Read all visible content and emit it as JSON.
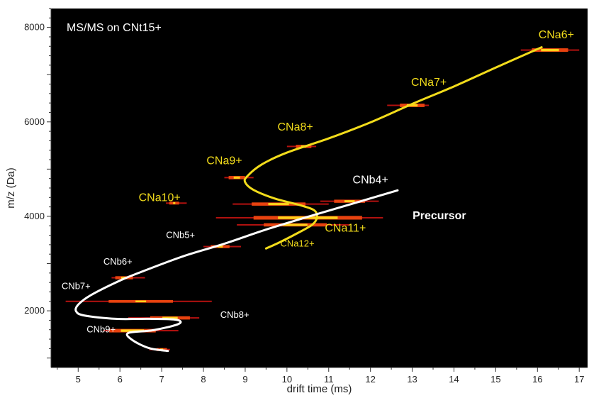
{
  "chart_data": {
    "type": "heatmap",
    "title": "MS/MS on CNt15+",
    "xlabel": "drift time (ms)",
    "ylabel": "m/z (Da)",
    "xlim": [
      4.35,
      17.2
    ],
    "ylim": [
      800,
      8400
    ],
    "x_ticks": [
      5,
      6,
      7,
      8,
      9,
      10,
      11,
      12,
      13,
      14,
      15,
      16,
      17
    ],
    "y_ticks": [
      2000,
      4000,
      6000,
      8000
    ],
    "grid": false,
    "background_color": "#000000",
    "a_series_color": "#f2dc1b",
    "b_series_color": "#ffffff",
    "spots": [
      {
        "x": 16.3,
        "y": 7520,
        "x_min": 15.6,
        "x_max": 17.0,
        "intensity": 0.9
      },
      {
        "x": 13.0,
        "y": 6350,
        "x_min": 12.4,
        "x_max": 13.4,
        "intensity": 0.8
      },
      {
        "x": 10.4,
        "y": 5480,
        "x_min": 10.0,
        "x_max": 10.7,
        "intensity": 0.6
      },
      {
        "x": 8.8,
        "y": 4820,
        "x_min": 8.5,
        "x_max": 9.2,
        "intensity": 0.7
      },
      {
        "x": 7.3,
        "y": 4280,
        "x_min": 7.1,
        "x_max": 7.6,
        "intensity": 0.4
      },
      {
        "x": 11.5,
        "y": 4320,
        "x_min": 10.8,
        "x_max": 12.2,
        "intensity": 0.6
      },
      {
        "x": 9.8,
        "y": 4260,
        "x_min": 8.7,
        "x_max": 11.0,
        "intensity": 0.7
      },
      {
        "x": 10.5,
        "y": 3970,
        "x_min": 8.3,
        "x_max": 12.3,
        "intensity": 1.0
      },
      {
        "x": 10.2,
        "y": 3820,
        "x_min": 8.8,
        "x_max": 11.5,
        "intensity": 0.7
      },
      {
        "x": 8.4,
        "y": 3360,
        "x_min": 8.0,
        "x_max": 8.9,
        "intensity": 0.5
      },
      {
        "x": 6.1,
        "y": 2700,
        "x_min": 5.8,
        "x_max": 6.6,
        "intensity": 0.6
      },
      {
        "x": 6.5,
        "y": 2200,
        "x_min": 4.7,
        "x_max": 8.2,
        "intensity": 0.3
      },
      {
        "x": 7.2,
        "y": 1850,
        "x_min": 6.2,
        "x_max": 7.9,
        "intensity": 0.7
      },
      {
        "x": 6.3,
        "y": 1580,
        "x_min": 5.6,
        "x_max": 7.4,
        "intensity": 0.9
      },
      {
        "x": 7.0,
        "y": 1180,
        "x_min": 6.7,
        "x_max": 7.2,
        "intensity": 0.5
      }
    ],
    "series": [
      {
        "name": "CNa",
        "color": "#f2dc1b",
        "x": [
          16.1,
          15.0,
          14.0,
          13.0,
          12.0,
          11.0,
          10.0,
          9.4,
          9.05,
          9.0,
          9.2,
          9.7,
          10.3,
          10.65,
          10.72,
          10.6,
          10.2,
          9.8,
          9.5
        ],
        "y": [
          7580,
          7150,
          6750,
          6380,
          5990,
          5650,
          5350,
          5100,
          4850,
          4720,
          4560,
          4380,
          4240,
          4130,
          3980,
          3820,
          3620,
          3440,
          3320
        ]
      },
      {
        "name": "CNb",
        "color": "#ffffff",
        "x": [
          12.65,
          11.5,
          10.5,
          9.5,
          8.5,
          7.5,
          6.5,
          6.0,
          5.3,
          5.0,
          4.95,
          5.15,
          5.9,
          6.7,
          7.35,
          7.4,
          6.8,
          6.2,
          6.3,
          6.7,
          7.15
        ],
        "y": [
          4550,
          4250,
          3990,
          3720,
          3420,
          3150,
          2820,
          2640,
          2330,
          2130,
          1990,
          1900,
          1830,
          1830,
          1810,
          1720,
          1590,
          1530,
          1380,
          1210,
          1150
        ]
      }
    ],
    "annotations": [
      {
        "text": "CNa6+",
        "x": 16.45,
        "y": 7770,
        "color": "#f2dc1b",
        "size": "large"
      },
      {
        "text": "CNa7+",
        "x": 13.4,
        "y": 6760,
        "color": "#f2dc1b",
        "size": "large"
      },
      {
        "text": "CNa8+",
        "x": 10.2,
        "y": 5820,
        "color": "#f2dc1b",
        "size": "large"
      },
      {
        "text": "CNa9+",
        "x": 8.5,
        "y": 5100,
        "color": "#f2dc1b",
        "size": "large"
      },
      {
        "text": "CNa10+",
        "x": 6.95,
        "y": 4320,
        "color": "#f2dc1b",
        "size": "large"
      },
      {
        "text": "CNa11+",
        "x": 11.4,
        "y": 3680,
        "color": "#f2dc1b",
        "size": "large"
      },
      {
        "text": "CNa12+",
        "x": 10.25,
        "y": 3360,
        "color": "#f2dc1b",
        "size": "small"
      },
      {
        "text": "CNb4+",
        "x": 12.0,
        "y": 4700,
        "color": "#ffffff",
        "size": "large"
      },
      {
        "text": "Precursor",
        "x": 13.65,
        "y": 3940,
        "color": "#ffffff",
        "size": "bold"
      },
      {
        "text": "CNb5+",
        "x": 7.45,
        "y": 3540,
        "color": "#ffffff",
        "size": "small"
      },
      {
        "text": "CNb6+",
        "x": 5.95,
        "y": 2980,
        "color": "#ffffff",
        "size": "small"
      },
      {
        "text": "CNb7+",
        "x": 4.95,
        "y": 2460,
        "color": "#ffffff",
        "size": "small"
      },
      {
        "text": "CNb8+",
        "x": 8.75,
        "y": 1850,
        "color": "#ffffff",
        "size": "small"
      },
      {
        "text": "CNb9+",
        "x": 5.55,
        "y": 1540,
        "color": "#ffffff",
        "size": "small"
      }
    ]
  }
}
